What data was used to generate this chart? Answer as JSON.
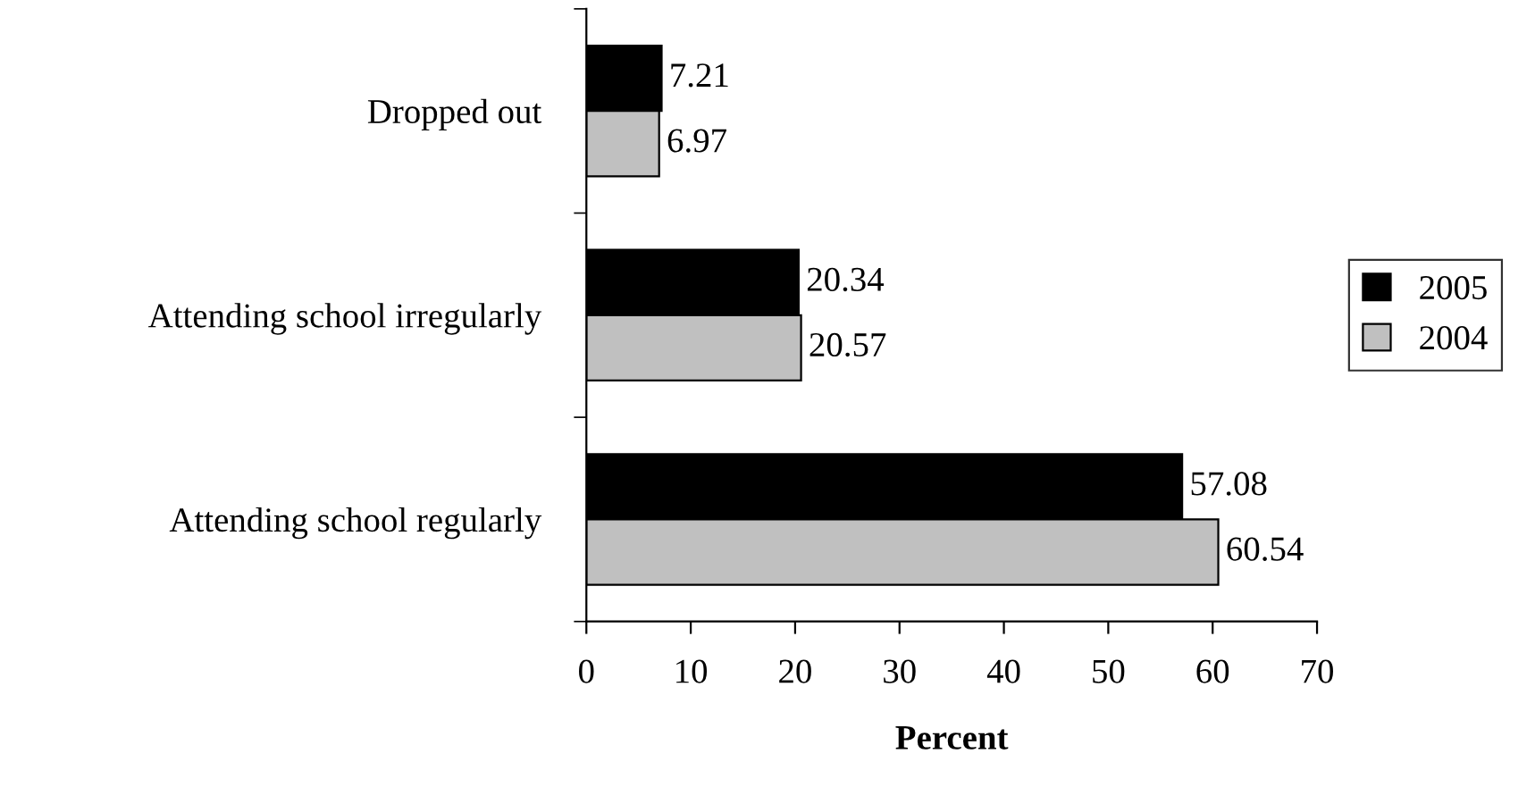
{
  "chart_data": {
    "type": "bar",
    "orientation": "horizontal",
    "xlabel": "Percent",
    "categories": [
      "Dropped out",
      "Attending school irregularly",
      "Attending school regularly"
    ],
    "series": [
      {
        "name": "2005",
        "color": "#000000",
        "values": [
          7.21,
          20.34,
          57.08
        ]
      },
      {
        "name": "2004",
        "color": "#c0c0c0",
        "values": [
          6.97,
          20.57,
          60.54
        ]
      }
    ],
    "xlim": [
      0,
      70
    ],
    "xticks": [
      0,
      10,
      20,
      30,
      40,
      50,
      60,
      70
    ],
    "data_labels": true,
    "legend": "right",
    "grid": false
  }
}
